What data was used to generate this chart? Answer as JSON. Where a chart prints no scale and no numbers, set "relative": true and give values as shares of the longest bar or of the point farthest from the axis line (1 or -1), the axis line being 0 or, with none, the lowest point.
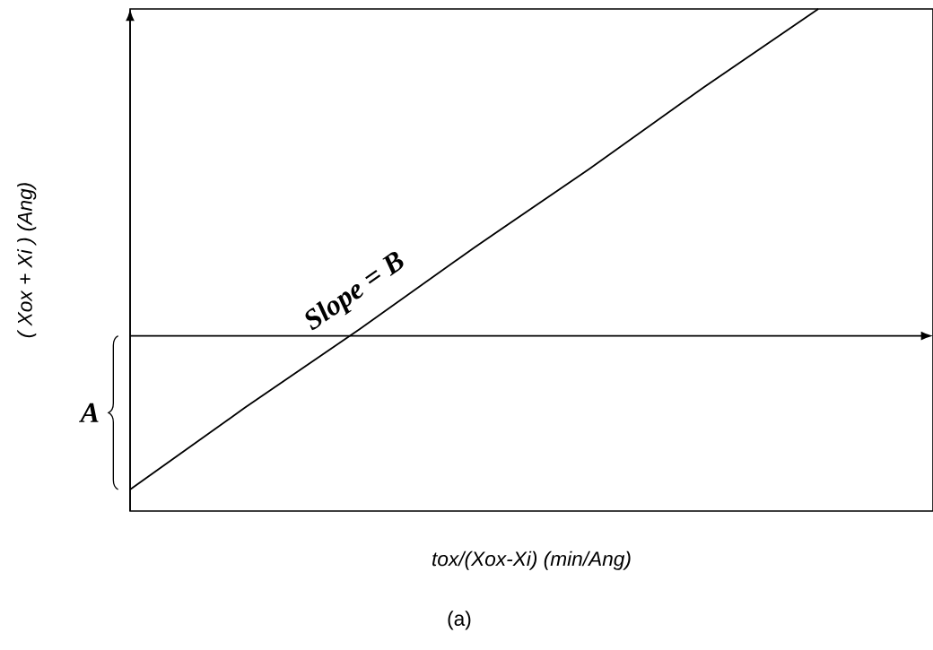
{
  "chart_data": {
    "type": "line",
    "relative": true,
    "color": "#000000",
    "xlabel": "tox/(Xox-Xi) (min/Ang)",
    "ylabel": "( Xox + Xi ) (Ang)",
    "categories": [
      null,
      null,
      null,
      null,
      null,
      null,
      null,
      null
    ],
    "values": [
      -0.47,
      -0.22,
      0.02,
      0.27,
      0.51,
      0.76,
      1,
      null
    ],
    "annotations": [
      "Slope = B",
      "A",
      "(a)"
    ]
  }
}
